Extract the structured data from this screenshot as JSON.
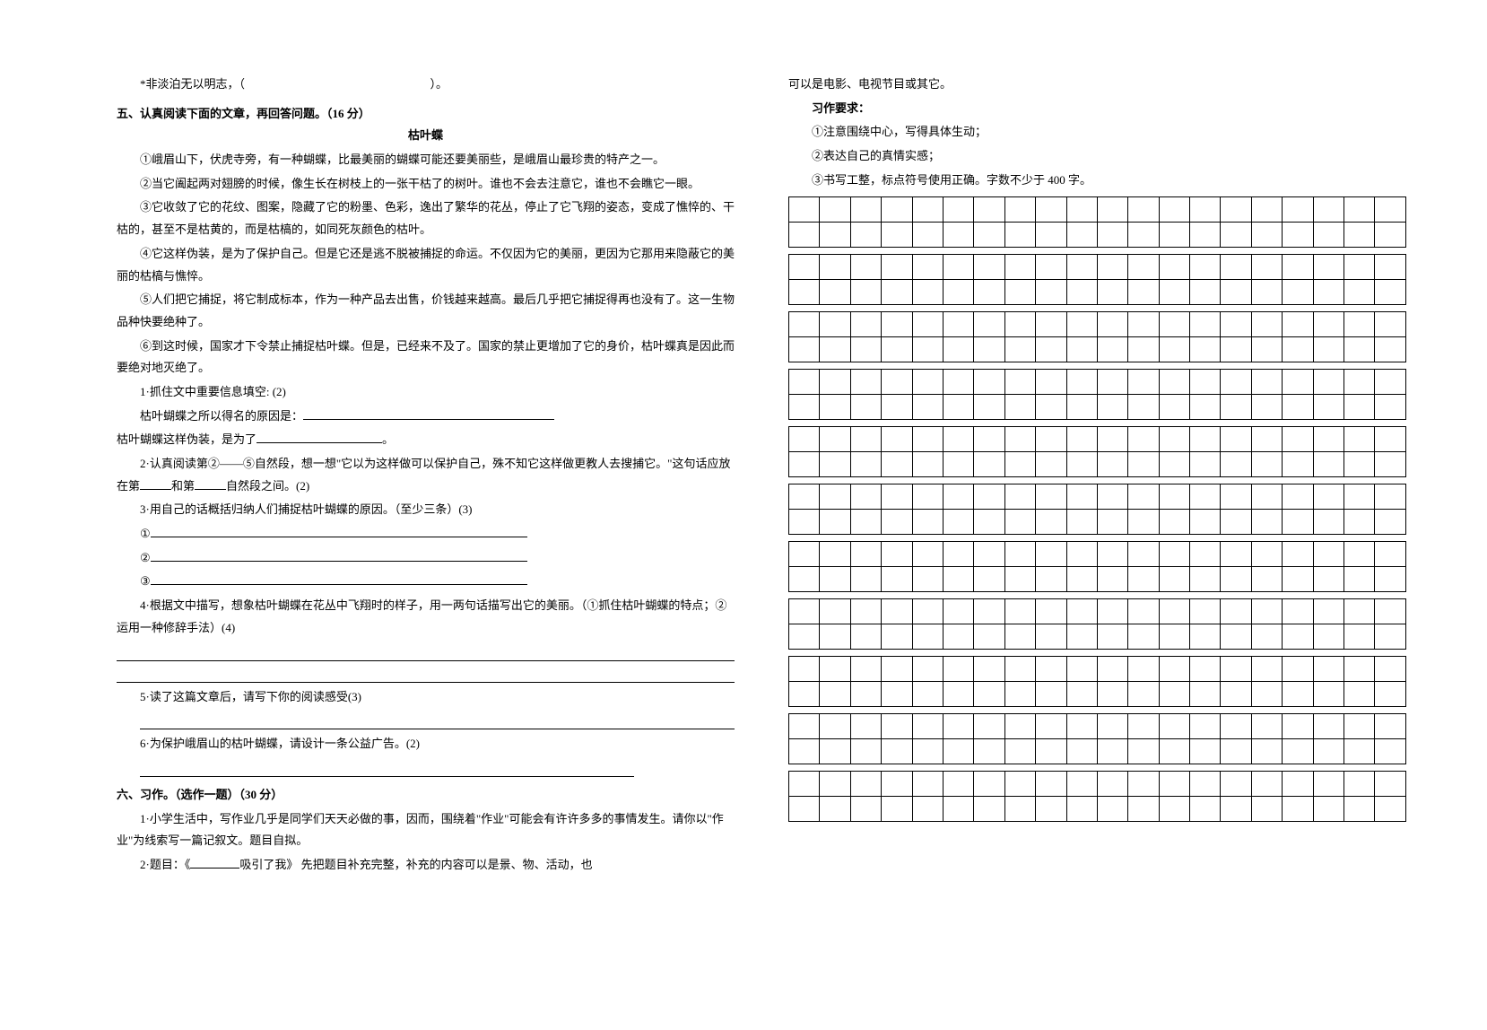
{
  "left": {
    "starLine": {
      "prefix": "*非淡泊无以明志，（",
      "suffix": "）。"
    },
    "section5Title": "五、认真阅读下面的文章，再回答问题。（16 分）",
    "passageTitle": "枯叶蝶",
    "p1": "①峨眉山下，伏虎寺旁，有一种蝴蝶，比最美丽的蝴蝶可能还要美丽些，是峨眉山最珍贵的特产之一。",
    "p2": "②当它阖起两对翅膀的时候，像生长在树枝上的一张干枯了的树叶。谁也不会去注意它，谁也不会瞧它一眼。",
    "p3": "③它收敛了它的花纹、图案，隐藏了它的粉墨、色彩，逸出了繁华的花丛，停止了它飞翔的姿态，变成了憔悴的、干枯的，甚至不是枯黄的，而是枯槁的，如同死灰颜色的枯叶。",
    "p4": "④它这样伪装，是为了保护自己。但是它还是逃不脱被捕捉的命运。不仅因为它的美丽，更因为它那用来隐蔽它的美丽的枯槁与憔悴。",
    "p5": "⑤人们把它捕捉，将它制成标本，作为一种产品去出售，价钱越来越高。最后几乎把它捕捉得再也没有了。这一生物品种快要绝种了。",
    "p6": "⑥到这时候，国家才下令禁止捕捉枯叶蝶。但是，已经来不及了。国家的禁止更增加了它的身价，枯叶蝶真是因此而要绝对地灭绝了。",
    "q1": "1·抓住文中重要信息填空: (2)",
    "q1a": "枯叶蝴蝶之所以得名的原因是：",
    "q1b_prefix": "枯叶蝴蝶这样伪装，是为了",
    "q1b_suffix": "。",
    "q2_a": "2·认真阅读第②——⑤自然段，想一想\"它以为这样做可以保护自己，殊不知它这样做更教人去搜捕它。\"这句话应放在第",
    "q2_b": "和第",
    "q2_c": "自然段之间。(2)",
    "q3": "3·用自己的话概括归纳人们捕捉枯叶蝴蝶的原因。（至少三条）(3)",
    "q3_1": "①",
    "q3_2": "②",
    "q3_3": "③",
    "q4": "4·根据文中描写，想象枯叶蝴蝶在花丛中飞翔时的样子，用一两句话描写出它的美丽。（①抓住枯叶蝴蝶的特点；②运用一种修辞手法）(4)",
    "q5": "5·读了这篇文章后，请写下你的阅读感受(3)",
    "q6": "6·为保护峨眉山的枯叶蝴蝶，请设计一条公益广告。(2)",
    "section6Title": "六、习作。（选作一题）（30 分）",
    "s6_1": "1·小学生活中，写作业几乎是同学们天天必做的事，因而，围绕着\"作业\"可能会有许许多多的事情发生。请你以\"作业\"为线索写一篇记叙文。题目自拟。",
    "s6_2a": "2·题目：《",
    "s6_2b": "吸引了我》  先把题目补充完整，补充的内容可以是景、物、活动，也"
  },
  "right": {
    "cont": "可以是电影、电视节目或其它。",
    "reqTitle": "习作要求：",
    "r1": "①注意围绕中心，写得具体生动；",
    "r2": "②表达自己的真情实感；",
    "r3": "③书写工整，标点符号使用正确。字数不少于 400 字。",
    "grid": {
      "cols": 20,
      "rowGroups": 11
    }
  }
}
